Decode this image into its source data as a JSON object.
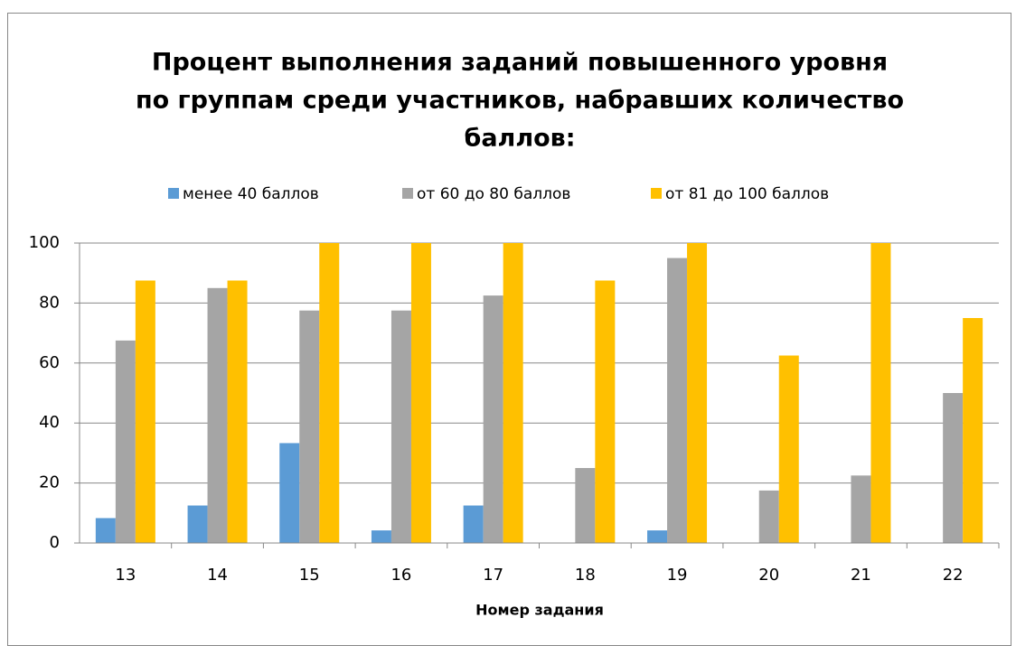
{
  "chart_data": {
    "type": "bar",
    "title": [
      "Процент выполнения заданий повышенного  уровня",
      "по группам среди участников, набравших количество",
      "баллов:"
    ],
    "x_label": "Номер задания",
    "categories": [
      "13",
      "14",
      "15",
      "16",
      "17",
      "18",
      "19",
      "20",
      "21",
      "22"
    ],
    "series": [
      {
        "name": "менее 40 баллов",
        "color": "#5b9bd5",
        "values": [
          8.3,
          12.5,
          33.3,
          4.2,
          12.5,
          0,
          4.2,
          0,
          0,
          0
        ]
      },
      {
        "name": "от 60 до 80 баллов",
        "color": "#a5a5a5",
        "values": [
          67.5,
          85,
          77.5,
          77.5,
          82.5,
          25,
          95,
          17.5,
          22.5,
          50
        ]
      },
      {
        "name": "от 81 до 100 баллов",
        "color": "#ffc000",
        "values": [
          87.5,
          87.5,
          100,
          100,
          100,
          87.5,
          100,
          62.5,
          100,
          75
        ]
      }
    ],
    "ylim": [
      0,
      100
    ],
    "yticks": [
      0,
      20,
      40,
      60,
      80,
      100
    ],
    "grid": true,
    "legend": "top"
  }
}
